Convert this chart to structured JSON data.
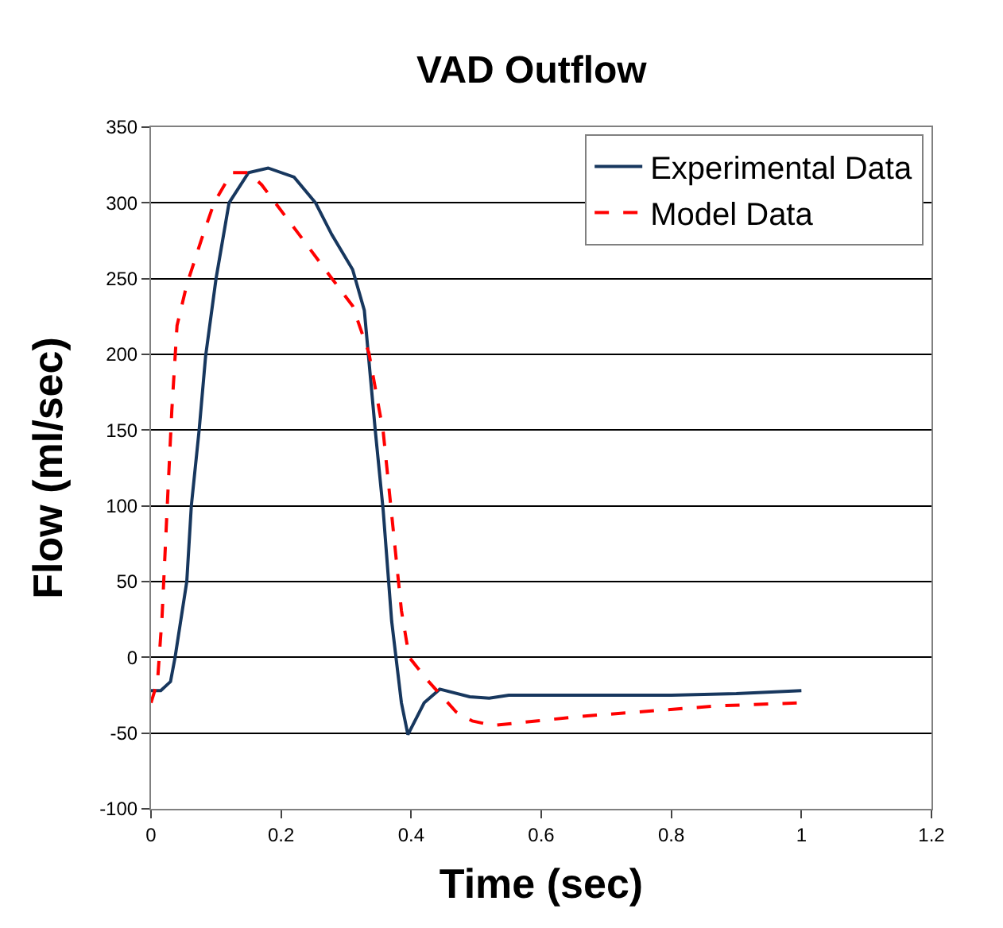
{
  "chart_data": {
    "type": "line",
    "title": "VAD Outflow",
    "xlabel": "Time (sec)",
    "ylabel": "Flow (ml/sec)",
    "xlim": [
      0,
      1.2
    ],
    "xticks": [
      0,
      0.2,
      0.4,
      0.6,
      0.8,
      1,
      1.2
    ],
    "ylim": [
      -100,
      350
    ],
    "yticks": [
      -100,
      -50,
      0,
      50,
      100,
      150,
      200,
      250,
      300,
      350
    ],
    "grid": "y",
    "legend": "top right",
    "marker": "none",
    "series": [
      {
        "name": "Experimental Data",
        "color": "#17375e",
        "line_style": "solid",
        "x": [
          0,
          0.015,
          0.03,
          0.037,
          0.055,
          0.062,
          0.074,
          0.084,
          0.1,
          0.12,
          0.15,
          0.18,
          0.22,
          0.253,
          0.278,
          0.31,
          0.328,
          0.345,
          0.357,
          0.37,
          0.385,
          0.395,
          0.42,
          0.444,
          0.49,
          0.52,
          0.55,
          0.6,
          0.7,
          0.8,
          0.9,
          1.0
        ],
        "values": [
          -22,
          -22,
          -16,
          0,
          50,
          100,
          150,
          199,
          250,
          300,
          320,
          323,
          317,
          300,
          279,
          256,
          229,
          149,
          97,
          24,
          -30,
          -51,
          -30,
          -21,
          -26,
          -27,
          -25,
          -25,
          -25,
          -25,
          -24,
          -22
        ]
      },
      {
        "name": "Model Data",
        "color": "#ff0000",
        "line_style": "dashed",
        "x": [
          0,
          0.01,
          0.017,
          0.025,
          0.032,
          0.04,
          0.055,
          0.08,
          0.097,
          0.124,
          0.15,
          0.17,
          0.228,
          0.273,
          0.31,
          0.335,
          0.357,
          0.372,
          0.385,
          0.397,
          0.427,
          0.469,
          0.494,
          0.526,
          0.66,
          0.873,
          1.0
        ],
        "values": [
          -30,
          -16,
          27,
          100,
          163,
          219,
          246,
          279,
          300,
          320,
          320,
          312,
          279,
          253,
          232,
          201,
          149,
          86,
          31,
          0,
          -16,
          -36,
          -42,
          -45,
          -39,
          -32,
          -30
        ]
      }
    ]
  }
}
